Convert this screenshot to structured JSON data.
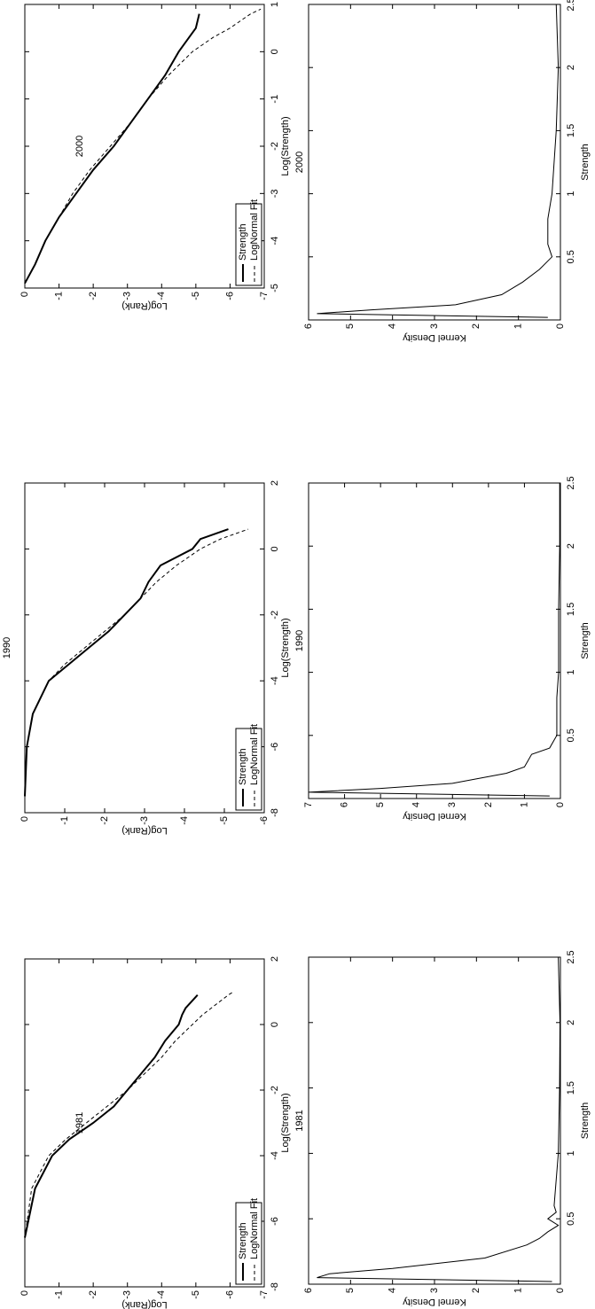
{
  "chart_data": [
    {
      "type": "line",
      "title": "1981",
      "xlabel": "Log(Strength)",
      "ylabel": "Log(Rank)",
      "x": [
        -6.5,
        -5,
        -4,
        -3.5,
        -3,
        -2.5,
        -2,
        -1.5,
        -1,
        -0.5,
        0,
        0.3,
        0.5,
        0.9,
        1.0
      ],
      "series": [
        {
          "name": "Strength",
          "color": "#000000",
          "line_style": "solid",
          "values": [
            0,
            -0.3,
            -0.8,
            -1.3,
            -2,
            -2.6,
            -3,
            -3.4,
            -3.8,
            -4.1,
            -4.5,
            -4.6,
            -4.7,
            -5.05,
            null
          ]
        },
        {
          "name": "LogNormal Fit",
          "color": "#000000",
          "line_style": "dashed",
          "values": [
            0,
            -0.2,
            -0.7,
            -1.2,
            -1.8,
            -2.4,
            -3,
            -3.5,
            -4,
            -4.4,
            -4.9,
            -5.2,
            -5.45,
            -5.95,
            -6.1
          ]
        }
      ],
      "xlim": [
        -8,
        2
      ],
      "xticks": [
        -8,
        -6,
        -4,
        -2,
        0,
        2
      ],
      "ylim": [
        -7,
        0
      ],
      "yticks": [
        0,
        -1,
        -2,
        -3,
        -4,
        -5,
        -6,
        -7
      ],
      "legend": "lower left"
    },
    {
      "type": "line",
      "title": "1990",
      "xlabel": "Log(Strength)",
      "ylabel": "Log(Rank)",
      "x": [
        -7.5,
        -6,
        -5,
        -4,
        -3.5,
        -3,
        -2.5,
        -2,
        -1.5,
        -1,
        -0.5,
        0,
        0.3,
        0.6
      ],
      "series": [
        {
          "name": "Strength",
          "color": "#000000",
          "line_style": "solid",
          "values": [
            0,
            -0.05,
            -0.2,
            -0.6,
            -1.1,
            -1.6,
            -2.1,
            -2.5,
            -2.9,
            -3.1,
            -3.4,
            -4.2,
            -4.4,
            -5.1
          ]
        },
        {
          "name": "LogNormal Fit",
          "color": "#000000",
          "line_style": "dashed",
          "values": [
            0,
            -0.05,
            -0.2,
            -0.6,
            -1,
            -1.5,
            -2,
            -2.5,
            -2.9,
            -3.3,
            -3.8,
            -4.4,
            -4.9,
            -5.6
          ]
        }
      ],
      "xlim": [
        -8,
        2
      ],
      "xticks": [
        -8,
        -6,
        -4,
        -2,
        0,
        2
      ],
      "ylim": [
        -6,
        0
      ],
      "yticks": [
        0,
        -1,
        -2,
        -3,
        -4,
        -5,
        -6
      ],
      "legend": "lower left"
    },
    {
      "type": "line",
      "title": "2000",
      "xlabel": "Log(Strength)",
      "ylabel": "Log(Rank)",
      "x": [
        -4.9,
        -4.5,
        -4,
        -3.5,
        -3,
        -2.5,
        -2,
        -1.5,
        -1,
        -0.5,
        0,
        0.3,
        0.5,
        0.8,
        0.9
      ],
      "series": [
        {
          "name": "Strength",
          "color": "#000000",
          "line_style": "solid",
          "values": [
            0,
            -0.3,
            -0.6,
            -1,
            -1.5,
            -2,
            -2.6,
            -3.1,
            -3.6,
            -4.1,
            -4.5,
            -4.8,
            -5,
            -5.1,
            null
          ]
        },
        {
          "name": "LogNormal Fit",
          "color": "#000000",
          "line_style": "dashed",
          "values": [
            0,
            -0.3,
            -0.6,
            -1,
            -1.4,
            -1.9,
            -2.5,
            -3.1,
            -3.6,
            -4.2,
            -4.9,
            -5.5,
            -6,
            -6.6,
            -6.9
          ]
        }
      ],
      "xlim": [
        -5,
        1
      ],
      "xticks": [
        -5,
        -4,
        -3,
        -2,
        -1,
        0,
        1
      ],
      "ylim": [
        -7,
        0
      ],
      "yticks": [
        0,
        -1,
        -2,
        -3,
        -4,
        -5,
        -6,
        -7
      ],
      "legend": "lower left"
    },
    {
      "type": "line",
      "title": "1981",
      "xlabel": "Strength",
      "ylabel": "Kernel Density",
      "x": [
        0.02,
        0.05,
        0.08,
        0.12,
        0.2,
        0.3,
        0.35,
        0.4,
        0.45,
        0.5,
        0.55,
        0.6,
        0.8,
        1,
        1.5,
        2,
        2.5
      ],
      "series": [
        {
          "color": "#000000",
          "line_style": "solid",
          "values": [
            0.2,
            5.8,
            5.5,
            4.0,
            1.8,
            0.8,
            0.5,
            0.3,
            0.05,
            0.3,
            0.1,
            0.15,
            0.1,
            0.05,
            0.02,
            0.01,
            0.05
          ]
        }
      ],
      "xlim": [
        0,
        2.5
      ],
      "xticks": [
        0.5,
        1,
        1.5,
        2,
        2.5
      ],
      "ylim": [
        0,
        6
      ],
      "yticks": [
        0,
        1,
        2,
        3,
        4,
        5,
        6
      ]
    },
    {
      "type": "line",
      "title": "1990",
      "xlabel": "Strength",
      "ylabel": "Kernel Density",
      "x": [
        0.02,
        0.05,
        0.08,
        0.12,
        0.2,
        0.25,
        0.3,
        0.35,
        0.4,
        0.5,
        0.6,
        0.8,
        1,
        1.5,
        2,
        2.5
      ],
      "series": [
        {
          "color": "#000000",
          "line_style": "solid",
          "values": [
            0.3,
            7,
            5,
            3,
            1.5,
            1,
            0.9,
            0.8,
            0.3,
            0.1,
            0.1,
            0.1,
            0.05,
            0.05,
            0.02,
            0.02
          ]
        }
      ],
      "xlim": [
        0,
        2.5
      ],
      "xticks": [
        0.5,
        1,
        1.5,
        2,
        2.5
      ],
      "ylim": [
        0,
        7
      ],
      "yticks": [
        0,
        1,
        2,
        3,
        4,
        5,
        6,
        7
      ]
    },
    {
      "type": "line",
      "title": "2000",
      "xlabel": "Strength",
      "ylabel": "Kernel Density",
      "x": [
        0.02,
        0.05,
        0.08,
        0.12,
        0.2,
        0.3,
        0.4,
        0.5,
        0.6,
        0.8,
        1,
        1.5,
        2,
        2.5
      ],
      "series": [
        {
          "color": "#000000",
          "line_style": "solid",
          "values": [
            0.3,
            5.8,
            4.5,
            2.5,
            1.4,
            0.9,
            0.5,
            0.2,
            0.3,
            0.3,
            0.2,
            0.1,
            0.05,
            0.1
          ]
        }
      ],
      "xlim": [
        0,
        2.5
      ],
      "xticks": [
        0.5,
        1,
        1.5,
        2,
        2.5
      ],
      "ylim": [
        0,
        6
      ],
      "yticks": [
        0,
        1,
        2,
        3,
        4,
        5,
        6
      ]
    }
  ]
}
